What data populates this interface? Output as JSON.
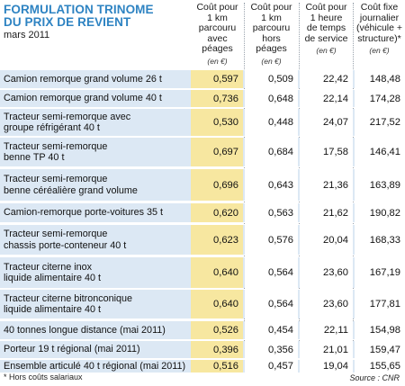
{
  "header": {
    "title_line1": "FORMULATION TRINOME",
    "title_line2": "DU PRIX DE REVIENT",
    "subtitle": "mars 2011"
  },
  "columns": [
    {
      "line1": "Coût pour",
      "line2": "1 km",
      "line3": "parcouru",
      "line4": "avec péages",
      "unit": "(en €)"
    },
    {
      "line1": "Coût pour",
      "line2": "1 km",
      "line3": "parcouru",
      "line4": "hors péages",
      "unit": "(en €)"
    },
    {
      "line1": "Coût pour",
      "line2": "1 heure",
      "line3": "de temps",
      "line4": "de service",
      "unit": "(en €)"
    },
    {
      "line1": "Coût fixe",
      "line2": "journalier",
      "line3": "(véhicule +",
      "line4": "structure)*",
      "unit": "(en €)"
    }
  ],
  "rows": [
    {
      "label1": "Camion remorque grand volume 26 t",
      "label2": "",
      "v1": "0,597",
      "v2": "0,509",
      "v3": "22,42",
      "v4": "148,48"
    },
    {
      "label1": "Camion remorque grand volume 40 t",
      "label2": "",
      "v1": "0,736",
      "v2": "0,648",
      "v3": "22,14",
      "v4": "174,28"
    },
    {
      "label1": "Tracteur semi-remorque avec",
      "label2": "groupe réfrigérant 40 t",
      "v1": "0,530",
      "v2": "0,448",
      "v3": "24,07",
      "v4": "217,52"
    },
    {
      "label1": "Tracteur semi-remorque",
      "label2": "benne TP 40 t",
      "v1": "0,697",
      "v2": "0,684",
      "v3": "17,58",
      "v4": "146,41"
    },
    {
      "label1": "Tracteur semi-remorque",
      "label2": "benne céréalière grand volume",
      "v1": "0,696",
      "v2": "0,643",
      "v3": "21,36",
      "v4": "163,89"
    },
    {
      "label1": "Camion-remorque porte-voitures 35 t",
      "label2": "",
      "v1": "0,620",
      "v2": "0,563",
      "v3": "21,62",
      "v4": "190,82"
    },
    {
      "label1": "Tracteur semi-remorque",
      "label2": "chassis porte-conteneur 40 t",
      "v1": "0,623",
      "v2": "0,576",
      "v3": "20,04",
      "v4": "168,33"
    },
    {
      "label1": "Tracteur citerne inox",
      "label2": "liquide alimentaire 40 t",
      "v1": "0,640",
      "v2": "0,564",
      "v3": "23,60",
      "v4": "167,19"
    },
    {
      "label1": "Tracteur citerne bitronconique",
      "label2": "liquide alimentaire 40 t",
      "v1": "0,640",
      "v2": "0,564",
      "v3": "23,60",
      "v4": "177,81"
    },
    {
      "label1": "40 tonnes longue distance (mai 2011)",
      "label2": "",
      "v1": "0,526",
      "v2": "0,454",
      "v3": "22,11",
      "v4": "154,98"
    },
    {
      "label1": "Porteur 19 t régional (mai 2011)",
      "label2": "",
      "v1": "0,396",
      "v2": "0,356",
      "v3": "21,01",
      "v4": "159,47"
    },
    {
      "label1": "Ensemble articulé 40 t régional (mai 2011)",
      "label2": "",
      "v1": "0,516",
      "v2": "0,457",
      "v3": "19,04",
      "v4": "155,65"
    }
  ],
  "footer": {
    "footnote": "* Hors coûts salariaux",
    "source": "Source : CNR"
  },
  "colors": {
    "title": "#2e83c2",
    "row_bg": "#dce8f4",
    "highlight_col": "#f7e7a0"
  }
}
